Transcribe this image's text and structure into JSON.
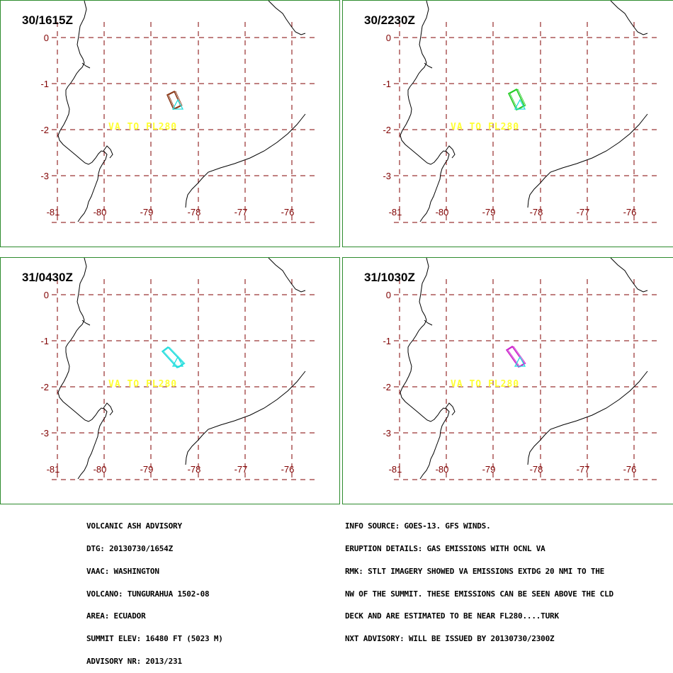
{
  "panels": [
    {
      "title": "30/1615Z",
      "ash_color": "#8b3a1a",
      "va_label": "VA TO FL280"
    },
    {
      "title": "30/2230Z",
      "ash_color": "#22cc22",
      "va_label": "VA TO FL280"
    },
    {
      "title": "31/0430Z",
      "ash_color": "#22dddd",
      "va_label": "VA TO FL280"
    },
    {
      "title": "31/1030Z",
      "ash_color": "#cc22cc",
      "va_label": "VA TO FL280"
    }
  ],
  "map": {
    "lat_labels": [
      "0",
      "-1",
      "-2",
      "-3"
    ],
    "lon_labels": [
      "-81",
      "-80",
      "-79",
      "-78",
      "-77",
      "-76"
    ],
    "grid_color": "#800000",
    "volcano_marker_color": "#22dddd",
    "coast_color": "#000000",
    "va_label_color": "#ffff33"
  },
  "advisory_left": [
    "VOLCANIC ASH ADVISORY",
    "DTG: 20130730/1654Z",
    "VAAC: WASHINGTON",
    "VOLCANO: TUNGURAHUA 1502-08",
    "AREA: ECUADOR",
    "SUMMIT ELEV: 16480 FT (5023 M)",
    "ADVISORY NR: 2013/231"
  ],
  "advisory_right": [
    "INFO SOURCE: GOES-13. GFS WINDS.",
    "ERUPTION DETAILS: GAS EMISSIONS WITH OCNL VA",
    "RMK: STLT IMAGERY SHOWED VA EMISSIONS EXTDG 20 NMI TO THE",
    "NW OF THE SUMMIT. THESE EMISSIONS CAN BE SEEN ABOVE THE CLD",
    "DECK AND ARE ESTIMATED TO BE NEAR FL280....TURK",
    "NXT ADVISORY: WILL BE ISSUED BY 20130730/2300Z"
  ]
}
